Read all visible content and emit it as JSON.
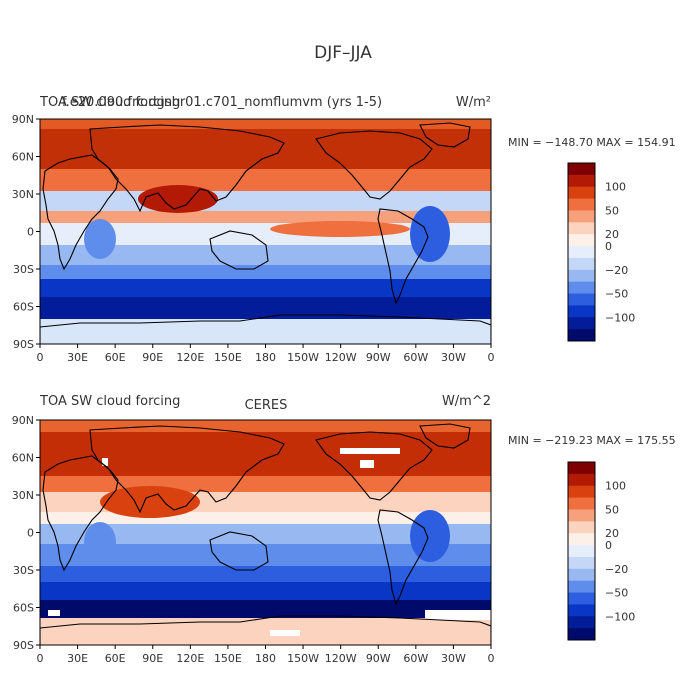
{
  "title": "DJF–JJA",
  "panels": [
    {
      "left_title": "TOA SW cloud forcing",
      "left_title_overlap": "f.e20.090.frc.dgshr01.c701_nomflumvm (yrs 1-5)",
      "units": "W/m^2",
      "units_display": "W/m²",
      "center_title": "",
      "stats": "MIN = −148.70 MAX = 154.91"
    },
    {
      "left_title": "TOA SW cloud forcing",
      "center_title": "CERES",
      "units": "W/m^2",
      "units_display": "W/m^2",
      "stats": "MIN = −219.23 MAX = 175.55"
    }
  ],
  "lat_labels": [
    "90N",
    "60N",
    "30N",
    "0",
    "30S",
    "60S",
    "90S"
  ],
  "lon_labels": [
    "0",
    "30E",
    "60E",
    "90E",
    "120E",
    "150E",
    "180",
    "150W",
    "120W",
    "90W",
    "60W",
    "30W",
    "0"
  ],
  "colorbar": {
    "labels": [
      "100",
      "50",
      "20",
      "0",
      "−20",
      "−50",
      "−100"
    ],
    "colors": [
      "#7f0000",
      "#b31a05",
      "#d9420f",
      "#ef6f3f",
      "#f6a17c",
      "#fbd3bf",
      "#fdf0e8",
      "#e6eefb",
      "#c4d7f7",
      "#98b8f2",
      "#5f8dec",
      "#2d5ee0",
      "#0a36c6",
      "#021c9a",
      "#000a6b"
    ]
  },
  "colors": {
    "land_outline": "#000000",
    "warm_strong": "#c8300a",
    "warm_mid": "#ef6f3f",
    "warm_light": "#fbd3bf",
    "cool_light": "#c4d7f7",
    "cool_mid": "#2d5ee0",
    "cool_strong": "#021c9a",
    "missing": "#ffffff"
  }
}
